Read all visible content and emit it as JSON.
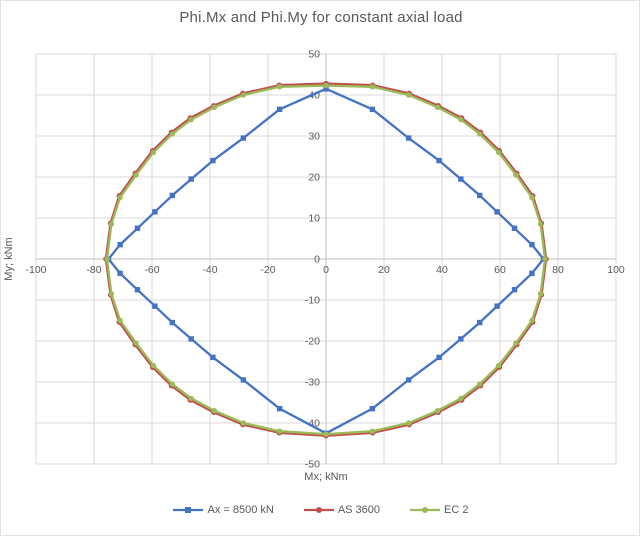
{
  "chart_data": {
    "type": "line",
    "title": "Phi.Mx and Phi.My for constant axial load",
    "xlabel": "Mx; kNm",
    "ylabel": "My; kNm",
    "xlim": [
      -100,
      100
    ],
    "ylim": [
      -50,
      50
    ],
    "x_ticks": [
      -100,
      -80,
      -60,
      -40,
      -20,
      0,
      20,
      40,
      60,
      80,
      100
    ],
    "y_ticks": [
      50,
      40,
      30,
      20,
      10,
      0,
      -10,
      -20,
      -30,
      -40,
      -50
    ],
    "grid": true,
    "legend_position": "bottom",
    "colors": {
      "grid": "#d9d9d9",
      "axis": "#bfbfbf",
      "plot_border": "#d9d9d9",
      "text": "#595959"
    },
    "series": [
      {
        "name": "Ax = 8500 kN",
        "color": "#4472c4",
        "marker": "square",
        "points": [
          [
            0,
            41.5
          ],
          [
            16,
            36.5
          ],
          [
            28.5,
            29.5
          ],
          [
            39,
            24
          ],
          [
            46.5,
            19.5
          ],
          [
            53,
            15.5
          ],
          [
            59,
            11.5
          ],
          [
            65,
            7.5
          ],
          [
            71,
            3.5
          ],
          [
            75,
            0
          ],
          [
            71,
            -3.5
          ],
          [
            65,
            -7.5
          ],
          [
            59,
            -11.5
          ],
          [
            53,
            -15.5
          ],
          [
            46.5,
            -19.5
          ],
          [
            39,
            -24
          ],
          [
            28.5,
            -29.5
          ],
          [
            16,
            -36.5
          ],
          [
            0,
            -42.5
          ],
          [
            -16,
            -36.5
          ],
          [
            -28.5,
            -29.5
          ],
          [
            -39,
            -24
          ],
          [
            -46.5,
            -19.5
          ],
          [
            -53,
            -15.5
          ],
          [
            -59,
            -11.5
          ],
          [
            -65,
            -7.5
          ],
          [
            -71,
            -3.5
          ],
          [
            -75,
            0
          ],
          [
            -71,
            3.5
          ],
          [
            -65,
            7.5
          ],
          [
            -59,
            11.5
          ],
          [
            -53,
            15.5
          ],
          [
            -46.5,
            19.5
          ],
          [
            -39,
            24
          ],
          [
            -28.5,
            29.5
          ],
          [
            -16,
            36.5
          ],
          [
            0,
            41.5
          ]
        ]
      },
      {
        "name": "AS 3600",
        "color": "#c0504d",
        "marker": "circle",
        "points": [
          [
            0,
            42.8
          ],
          [
            16.1,
            42.4
          ],
          [
            28.7,
            40.4
          ],
          [
            38.7,
            37.4
          ],
          [
            46.8,
            34.4
          ],
          [
            53.3,
            30.9
          ],
          [
            59.8,
            26.4
          ],
          [
            65.8,
            20.9
          ],
          [
            71.3,
            15.4
          ],
          [
            74.3,
            8.7
          ],
          [
            75.9,
            0
          ],
          [
            74.3,
            -8.7
          ],
          [
            71.3,
            -15.4
          ],
          [
            65.8,
            -20.9
          ],
          [
            59.8,
            -26.4
          ],
          [
            53.3,
            -30.9
          ],
          [
            46.8,
            -34.4
          ],
          [
            38.7,
            -37.4
          ],
          [
            28.7,
            -40.4
          ],
          [
            16.1,
            -42.4
          ],
          [
            0,
            -43.1
          ],
          [
            -16.1,
            -42.4
          ],
          [
            -28.7,
            -40.4
          ],
          [
            -38.7,
            -37.4
          ],
          [
            -46.8,
            -34.4
          ],
          [
            -53.3,
            -30.9
          ],
          [
            -59.8,
            -26.4
          ],
          [
            -65.8,
            -20.9
          ],
          [
            -71.3,
            -15.4
          ],
          [
            -74.3,
            -8.7
          ],
          [
            -75.9,
            0
          ],
          [
            -74.3,
            8.7
          ],
          [
            -71.3,
            15.4
          ],
          [
            -65.8,
            20.9
          ],
          [
            -59.8,
            26.4
          ],
          [
            -53.3,
            30.9
          ],
          [
            -46.8,
            34.4
          ],
          [
            -38.7,
            37.4
          ],
          [
            -28.7,
            40.4
          ],
          [
            -16.1,
            42.4
          ],
          [
            0,
            42.8
          ]
        ]
      },
      {
        "name": "EC 2",
        "color": "#9bbb59",
        "marker": "circle",
        "points": [
          [
            0,
            42.3
          ],
          [
            16,
            42
          ],
          [
            28.5,
            40
          ],
          [
            38.5,
            37
          ],
          [
            46.5,
            34
          ],
          [
            53,
            30.5
          ],
          [
            59.5,
            26
          ],
          [
            65.5,
            20.5
          ],
          [
            71,
            15
          ],
          [
            74,
            8.5
          ],
          [
            75.5,
            0
          ],
          [
            74,
            -8.5
          ],
          [
            71,
            -15
          ],
          [
            65.5,
            -20.5
          ],
          [
            59.5,
            -26
          ],
          [
            53,
            -30.5
          ],
          [
            46.5,
            -34
          ],
          [
            38.5,
            -37
          ],
          [
            28.5,
            -40
          ],
          [
            16,
            -42
          ],
          [
            0,
            -42.7
          ],
          [
            -16,
            -42
          ],
          [
            -28.5,
            -40
          ],
          [
            -38.5,
            -37
          ],
          [
            -46.5,
            -34
          ],
          [
            -53,
            -30.5
          ],
          [
            -59.5,
            -26
          ],
          [
            -65.5,
            -20.5
          ],
          [
            -71,
            -15
          ],
          [
            -74,
            -8.5
          ],
          [
            -75.5,
            0
          ],
          [
            -74,
            8.5
          ],
          [
            -71,
            15
          ],
          [
            -65.5,
            20.5
          ],
          [
            -59.5,
            26
          ],
          [
            -53,
            30.5
          ],
          [
            -46.5,
            34
          ],
          [
            -38.5,
            37
          ],
          [
            -28.5,
            40
          ],
          [
            -16,
            42
          ],
          [
            0,
            42.3
          ]
        ]
      }
    ]
  }
}
